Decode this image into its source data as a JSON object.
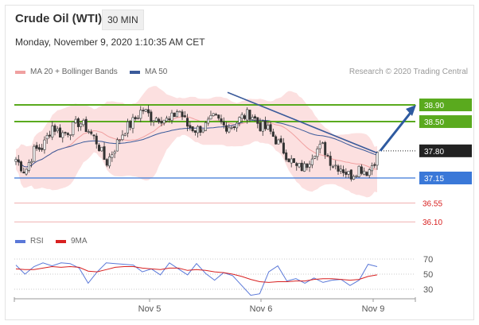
{
  "header": {
    "title": "Crude Oil (WTI)",
    "timeframe": "30 MIN",
    "datetime": "Monday, November 9, 2020 1:10:35 AM CET",
    "credit": "Research © 2020 Trading Central"
  },
  "legend": {
    "ma20": "MA 20 + Bollinger Bands",
    "ma50": "MA 50",
    "rsi": "RSI",
    "ma9": "9MA"
  },
  "colors": {
    "resistance": "#5aaa1e",
    "pivot": "#3a78d8",
    "support": "#d82020",
    "current": "#222222",
    "bollinger": "#fbdada",
    "ma20": "#f0a0a0",
    "ma50": "#3a5a9a",
    "rsi": "#5a78d8",
    "rsi_ma": "#d82020"
  },
  "chart_data": {
    "type": "candlestick",
    "instrument": "Crude Oil (WTI)",
    "timeframe": "30 MIN",
    "x_ticks": [
      "Nov 5",
      "Nov 6",
      "Nov 9"
    ],
    "levels": [
      {
        "label": "38.90",
        "value": 38.9,
        "kind": "resistance"
      },
      {
        "label": "38.50",
        "value": 38.5,
        "kind": "resistance"
      },
      {
        "label": "37.80",
        "value": 37.8,
        "kind": "current"
      },
      {
        "label": "37.15",
        "value": 37.15,
        "kind": "pivot"
      },
      {
        "label": "36.55",
        "value": 36.55,
        "kind": "support"
      },
      {
        "label": "36.10",
        "value": 36.1,
        "kind": "support"
      }
    ],
    "price_path": [
      37.6,
      37.3,
      37.8,
      37.9,
      38.4,
      38.2,
      38.3,
      38.5,
      38.3,
      38.0,
      37.5,
      37.9,
      38.3,
      38.5,
      38.8,
      38.6,
      38.6,
      38.5,
      38.8,
      38.4,
      38.3,
      38.4,
      38.6,
      38.4,
      38.4,
      38.6,
      38.7,
      38.4,
      38.3,
      38.0,
      37.7,
      37.4,
      37.4,
      37.8,
      37.9,
      37.5,
      37.4,
      37.2,
      37.4,
      37.3,
      37.7
    ],
    "rsi": {
      "levels": [
        70,
        50,
        30
      ],
      "values": [
        62,
        50,
        60,
        65,
        61,
        65,
        64,
        58,
        38,
        53,
        65,
        64,
        63,
        62,
        53,
        57,
        49,
        65,
        57,
        49,
        64,
        51,
        42,
        52,
        48,
        35,
        22,
        24,
        53,
        61,
        41,
        44,
        38,
        45,
        39,
        42,
        43,
        35,
        42,
        63,
        60
      ],
      "ma9": [
        57,
        56,
        56,
        58,
        60,
        59,
        60,
        59,
        54,
        53,
        56,
        59,
        60,
        60,
        58,
        57,
        56,
        58,
        58,
        55,
        56,
        55,
        53,
        52,
        50,
        47,
        43,
        40,
        39,
        40,
        40,
        41,
        41,
        43,
        44,
        44,
        43,
        42,
        43,
        47,
        49
      ]
    },
    "trendline": {
      "from": 39.2,
      "to": 37.75
    },
    "projection": {
      "from": 37.8,
      "to": 38.9
    }
  }
}
